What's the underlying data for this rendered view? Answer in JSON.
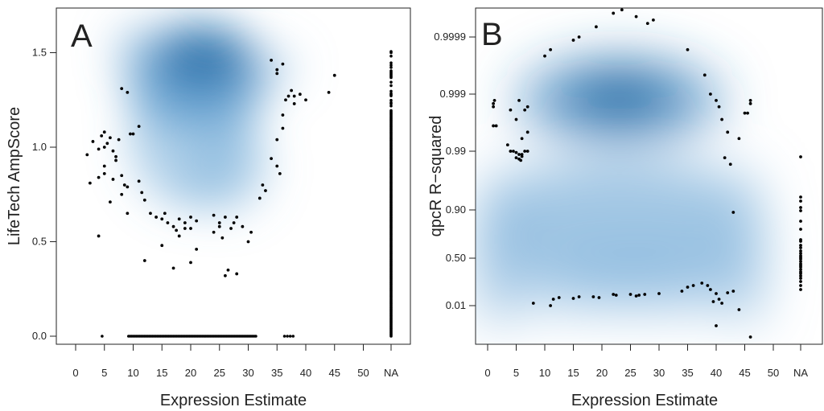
{
  "chart_data": [
    {
      "type": "scatter",
      "panel_label": "A",
      "xlabel": "Expression Estimate",
      "ylabel": "LifeTech AmpScore",
      "xticks": [
        "0",
        "5",
        "10",
        "15",
        "20",
        "25",
        "30",
        "35",
        "40",
        "45",
        "50",
        "NA"
      ],
      "yticks": [
        "0.0",
        "0.5",
        "1.0",
        "1.5"
      ],
      "xlim": [
        -1,
        55
      ],
      "ylim": [
        -0.05,
        1.65
      ],
      "density": "2D density of points, darkest around x 18-26, y 1.2-1.5",
      "points": [
        [
          2,
          0.96
        ],
        [
          3,
          1.03
        ],
        [
          4,
          0.99
        ],
        [
          4.5,
          1.06
        ],
        [
          5,
          1.0
        ],
        [
          5,
          1.08
        ],
        [
          5.5,
          1.02
        ],
        [
          6,
          1.05
        ],
        [
          6.5,
          0.98
        ],
        [
          7,
          0.93
        ],
        [
          7.5,
          1.04
        ],
        [
          4,
          0.84
        ],
        [
          5,
          0.86
        ],
        [
          5,
          0.9
        ],
        [
          6,
          0.71
        ],
        [
          6.5,
          0.83
        ],
        [
          7,
          0.95
        ],
        [
          8,
          0.85
        ],
        [
          8,
          0.75
        ],
        [
          8.5,
          0.8
        ],
        [
          9,
          0.79
        ],
        [
          9,
          0.65
        ],
        [
          9.5,
          1.07
        ],
        [
          10,
          1.07
        ],
        [
          11,
          1.11
        ],
        [
          2.5,
          0.81
        ],
        [
          4,
          0.53
        ],
        [
          8,
          1.31
        ],
        [
          9,
          1.29
        ],
        [
          11,
          0.82
        ],
        [
          11.5,
          0.76
        ],
        [
          12,
          0.72
        ],
        [
          12,
          0.4
        ],
        [
          13,
          0.65
        ],
        [
          14,
          0.63
        ],
        [
          15,
          0.62
        ],
        [
          15.5,
          0.65
        ],
        [
          15,
          0.48
        ],
        [
          16,
          0.6
        ],
        [
          17,
          0.58
        ],
        [
          17.5,
          0.56
        ],
        [
          18,
          0.53
        ],
        [
          18,
          0.62
        ],
        [
          19,
          0.57
        ],
        [
          19,
          0.6
        ],
        [
          20,
          0.63
        ],
        [
          20,
          0.57
        ],
        [
          21,
          0.61
        ],
        [
          21,
          0.46
        ],
        [
          20,
          0.39
        ],
        [
          17,
          0.36
        ],
        [
          24,
          0.64
        ],
        [
          24,
          0.55
        ],
        [
          25,
          0.58
        ],
        [
          25,
          0.6
        ],
        [
          25.5,
          0.52
        ],
        [
          26,
          0.63
        ],
        [
          26.5,
          0.35
        ],
        [
          26,
          0.32
        ],
        [
          28,
          0.33
        ],
        [
          27,
          0.57
        ],
        [
          27.5,
          0.6
        ],
        [
          28,
          0.63
        ],
        [
          29,
          0.58
        ],
        [
          30,
          0.5
        ],
        [
          30.5,
          0.55
        ],
        [
          32,
          0.73
        ],
        [
          32.5,
          0.8
        ],
        [
          33,
          0.77
        ],
        [
          34,
          0.94
        ],
        [
          35,
          0.9
        ],
        [
          35,
          1.04
        ],
        [
          35.5,
          0.86
        ],
        [
          36,
          1.17
        ],
        [
          36,
          1.1
        ],
        [
          36.5,
          1.25
        ],
        [
          37,
          1.27
        ],
        [
          37.5,
          1.3
        ],
        [
          38,
          1.23
        ],
        [
          38,
          1.27
        ],
        [
          39,
          1.28
        ],
        [
          40,
          1.25
        ],
        [
          34,
          1.46
        ],
        [
          35,
          1.41
        ],
        [
          35,
          1.39
        ],
        [
          36,
          1.44
        ],
        [
          44,
          1.29
        ],
        [
          45,
          1.38
        ]
      ],
      "zero_row": "dense points at y = 0.0 from x 9 to 31, plus x 4.5, 36-38",
      "na_column": "dense points at x = NA, y 0 to 1.52"
    },
    {
      "type": "scatter",
      "panel_label": "B",
      "xlabel": "Expression Estimate",
      "ylabel": "qpcR R−squared",
      "xticks": [
        "0",
        "5",
        "10",
        "15",
        "20",
        "25",
        "30",
        "35",
        "40",
        "45",
        "50",
        "NA"
      ],
      "yticks": [
        "0.01",
        "0.50",
        "0.90",
        "0.99",
        "0.999",
        "0.9999"
      ],
      "xlim": [
        -1.5,
        55
      ],
      "density": "2D density, darkest around x 18-30 near 0.999; lighter band from 0.01 to 0.99",
      "upper_points": [
        [
          1,
          0.997
        ],
        [
          1,
          0.9975
        ],
        [
          1.2,
          0.998
        ],
        [
          1,
          0.994
        ],
        [
          1.5,
          0.994
        ],
        [
          4,
          0.9965
        ],
        [
          5,
          0.995
        ],
        [
          5.5,
          0.998
        ],
        [
          6.5,
          0.9965
        ],
        [
          7,
          0.997
        ],
        [
          3.5,
          0.991
        ],
        [
          4,
          0.99
        ],
        [
          4.5,
          0.99
        ],
        [
          5,
          0.988
        ],
        [
          5.5,
          0.985
        ],
        [
          6,
          0.985
        ],
        [
          6.5,
          0.99
        ],
        [
          6,
          0.992
        ],
        [
          7,
          0.993
        ],
        [
          5,
          0.98
        ],
        [
          5.5,
          0.978
        ],
        [
          5.8,
          0.976
        ],
        [
          6,
          0.982
        ],
        [
          7,
          0.99
        ],
        [
          10,
          0.9996
        ],
        [
          11,
          0.9997
        ],
        [
          15,
          0.99985
        ],
        [
          16,
          0.9999
        ],
        [
          19,
          0.99993
        ],
        [
          22,
          0.99997
        ],
        [
          23.5,
          0.99998
        ],
        [
          26,
          0.99996
        ],
        [
          28,
          0.99994
        ],
        [
          29,
          0.99995
        ],
        [
          35,
          0.9997
        ],
        [
          38,
          0.9993
        ],
        [
          39,
          0.999
        ],
        [
          40,
          0.998
        ],
        [
          40.5,
          0.997
        ],
        [
          41,
          0.995
        ],
        [
          42,
          0.993
        ],
        [
          41.5,
          0.98
        ],
        [
          42.5,
          0.97
        ],
        [
          43,
          0.88
        ],
        [
          44,
          0.992
        ],
        [
          45,
          0.996
        ],
        [
          45.5,
          0.996
        ],
        [
          46,
          0.998
        ],
        [
          46,
          0.9975
        ]
      ],
      "lower_points_note": "row of points near 0.01-0.05 from x 8 to 44, with a few lower near x 40 and 46",
      "na_column": "points at x = NA spanning about 0.1 to 0.99"
    }
  ]
}
